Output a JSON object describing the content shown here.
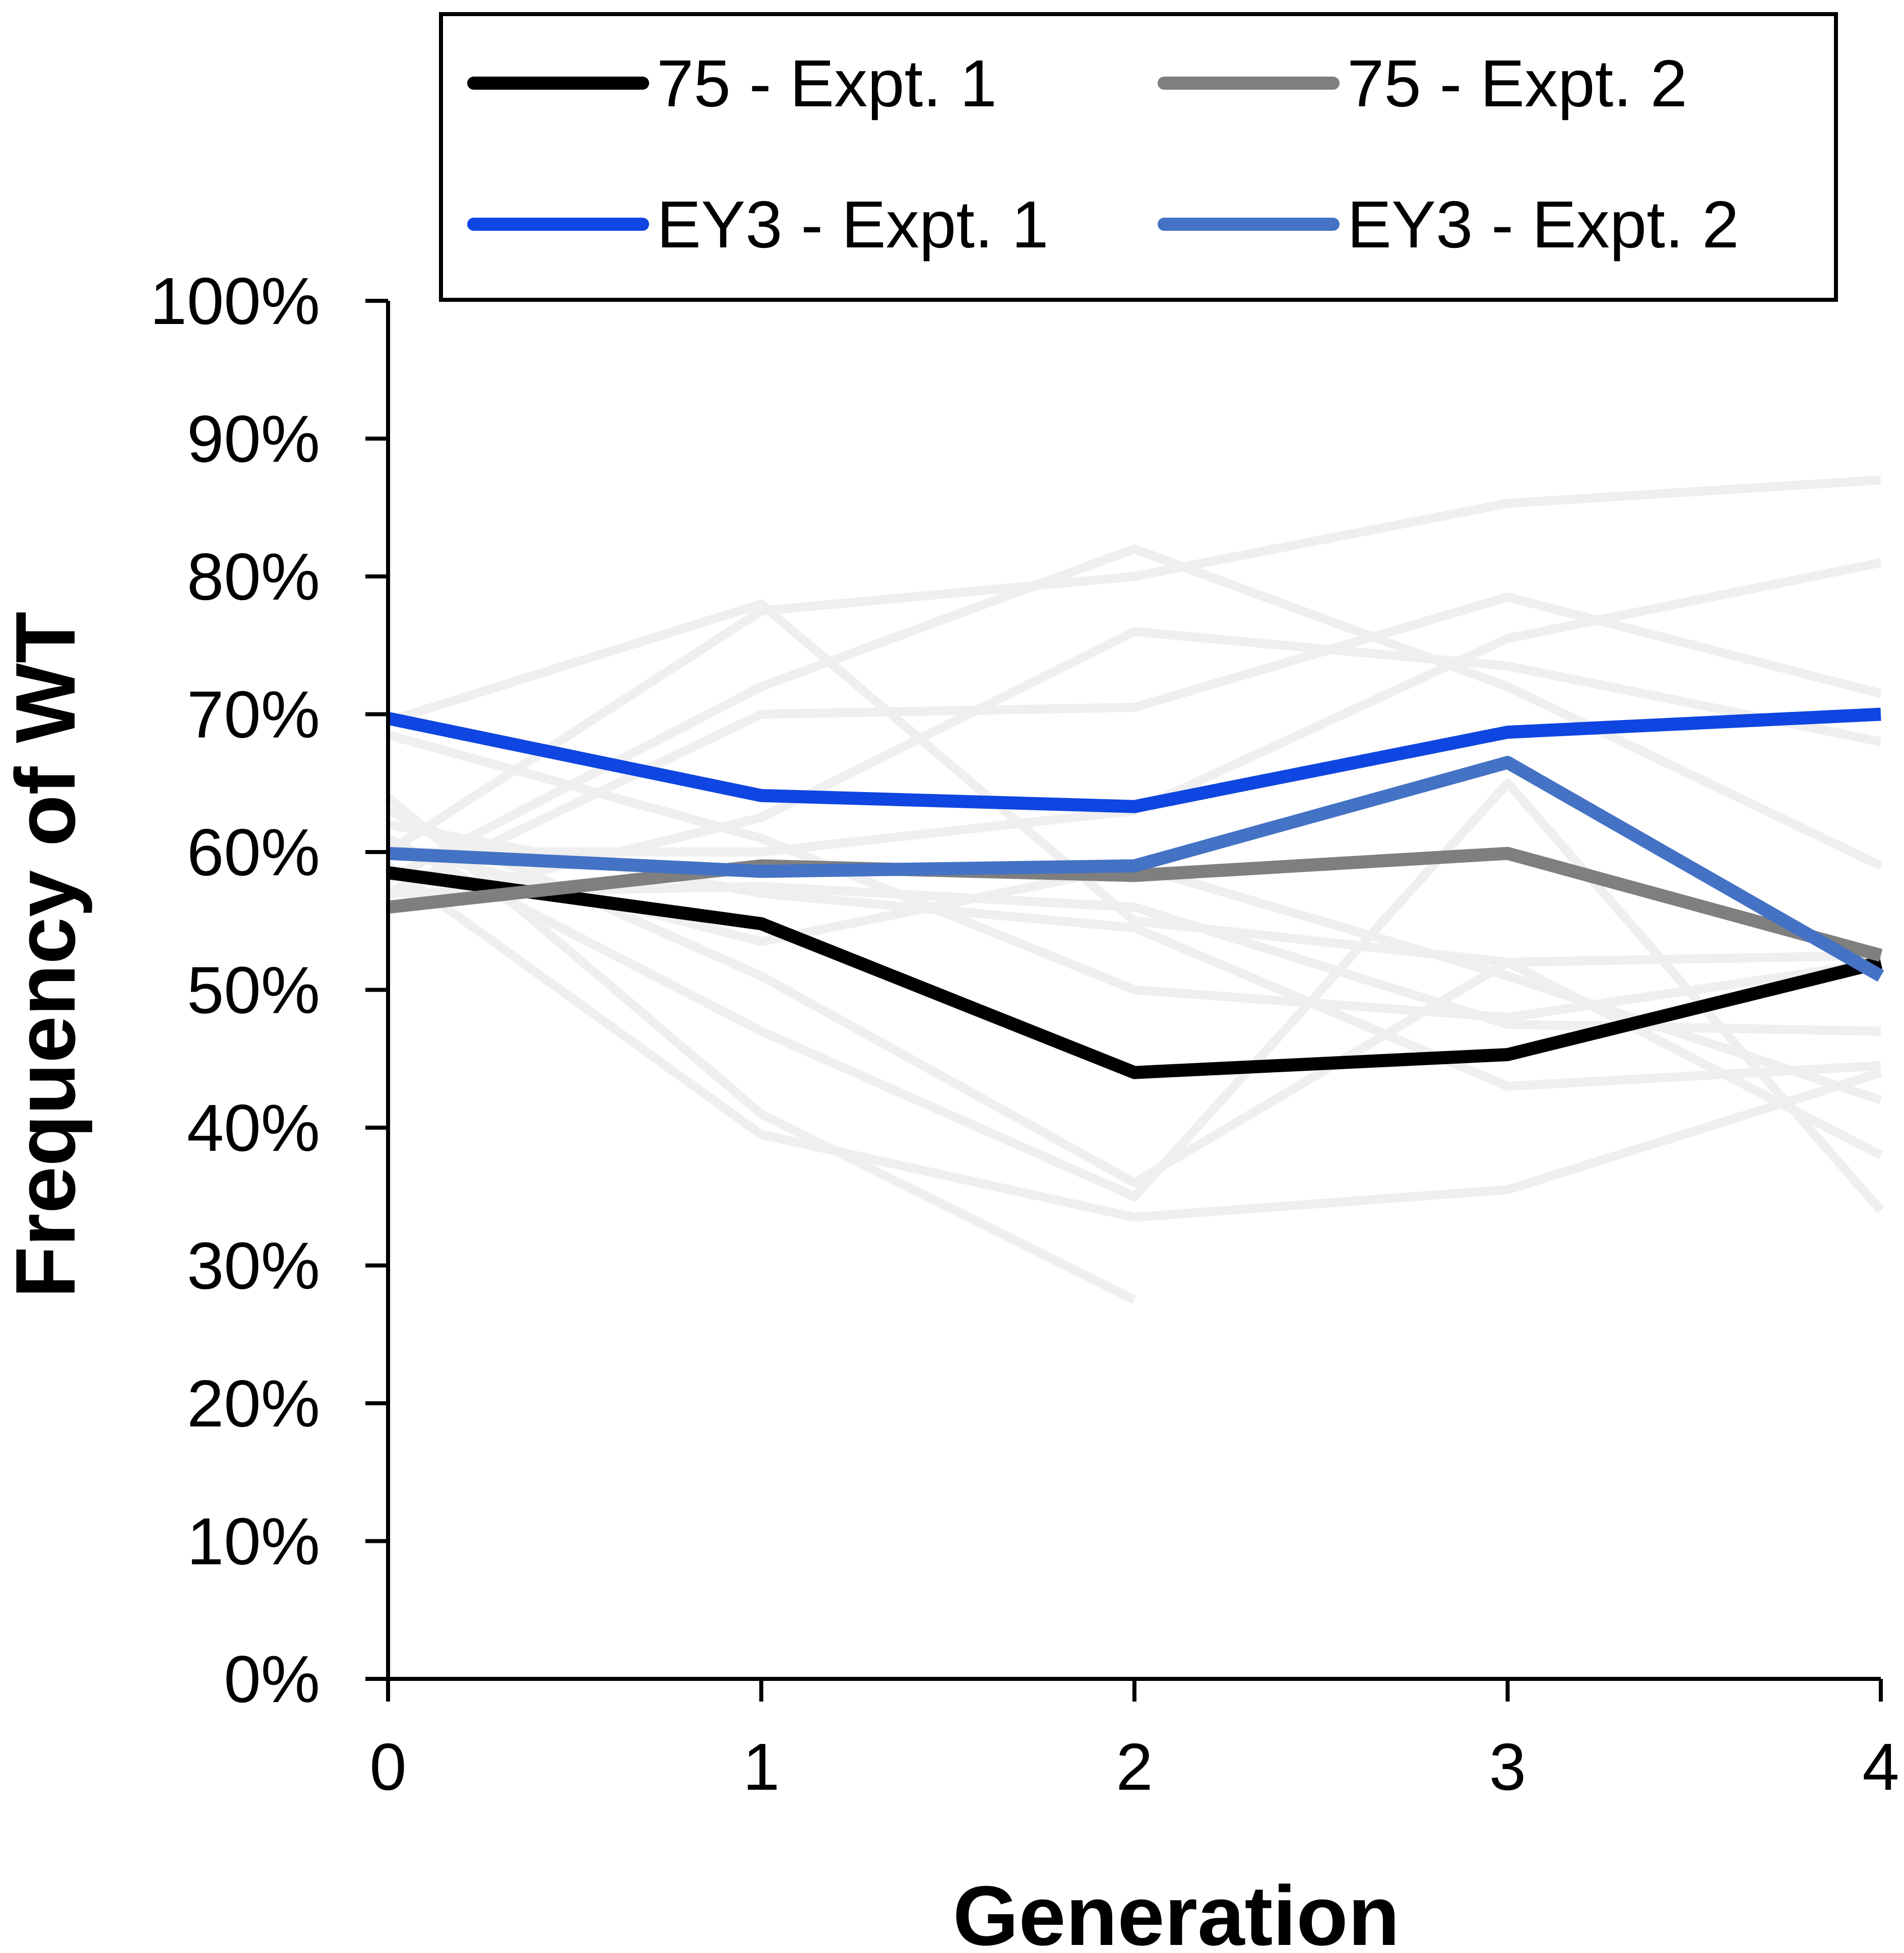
{
  "chart_data": {
    "type": "line",
    "title": "",
    "xlabel": "Generation",
    "ylabel": "Frequency of WT",
    "x": [
      0,
      1,
      2,
      3,
      4
    ],
    "xlim": [
      0,
      4
    ],
    "ylim": [
      0,
      100
    ],
    "y_unit": "%",
    "y_ticks": [
      0,
      10,
      20,
      30,
      40,
      50,
      60,
      70,
      80,
      90,
      100
    ],
    "y_tick_labels": [
      "0%",
      "10%",
      "20%",
      "30%",
      "40%",
      "50%",
      "60%",
      "70%",
      "80%",
      "90%",
      "100%"
    ],
    "x_tick_labels": [
      "0",
      "1",
      "2",
      "3",
      "4"
    ],
    "grid": false,
    "legend": {
      "position": "top",
      "columns": 2
    },
    "series": [
      {
        "name": "75 - Expt. 1",
        "color": "#000000",
        "values": [
          58.5,
          54.8,
          44.0,
          45.3,
          52.0
        ]
      },
      {
        "name": "75 - Expt. 2",
        "color": "#7f7f7f",
        "values": [
          56.0,
          59.0,
          58.3,
          59.9,
          52.5
        ]
      },
      {
        "name": "EY3 - Expt. 1",
        "color": "#0f45e0",
        "values": [
          69.7,
          64.1,
          63.3,
          68.7,
          70.0
        ]
      },
      {
        "name": "EY3 - Expt. 2",
        "color": "#4472c4",
        "values": [
          59.9,
          58.6,
          59.0,
          66.5,
          51.0
        ]
      }
    ],
    "background_series": {
      "color": "#efefef",
      "lines": [
        [
          69.5,
          78.0,
          55.0,
          52.0,
          52.5
        ],
        [
          60.0,
          77.5,
          80.0,
          85.3,
          87.0
        ],
        [
          58.0,
          72.0,
          82.0,
          72.0,
          59.0
        ],
        [
          56.0,
          62.5,
          76.0,
          73.5,
          68.0
        ],
        [
          57.0,
          70.0,
          70.5,
          78.5,
          71.5
        ],
        [
          60.0,
          60.0,
          63.0,
          75.5,
          81.0
        ],
        [
          68.5,
          61.0,
          50.0,
          48.0,
          52.0
        ],
        [
          57.0,
          57.5,
          56.0,
          47.5,
          47.0
        ],
        [
          60.5,
          53.5,
          59.0,
          51.0,
          42.0
        ],
        [
          61.0,
          47.0,
          35.0,
          65.0,
          34.0
        ],
        [
          64.0,
          41.0,
          27.5
        ],
        [
          59.0,
          39.5,
          33.5,
          35.5,
          44.0
        ],
        [
          62.0,
          57.0,
          54.5,
          43.0,
          44.5
        ],
        [
          63.0,
          51.0,
          36.0,
          52.0,
          38.0
        ]
      ]
    }
  }
}
